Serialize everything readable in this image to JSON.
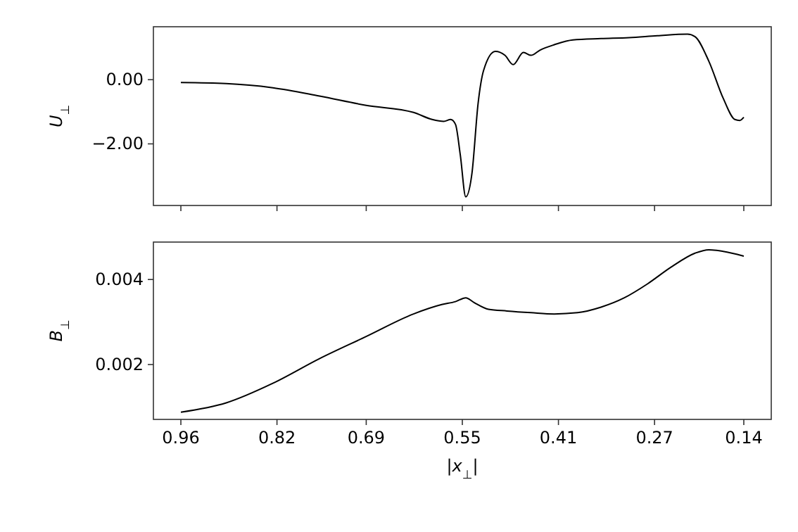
{
  "chart_data": [
    {
      "type": "line",
      "ylabel": "U$_{⊥}$",
      "tick_labels": "y",
      "grid": false,
      "xlim": [
        1.0,
        0.1
      ],
      "xticks": [
        0.96,
        0.82,
        0.69,
        0.55,
        0.41,
        0.27,
        0.14
      ],
      "ylim": [
        -3.92,
        1.65
      ],
      "yticks": [
        {
          "value": 0,
          "label": "0.00"
        },
        {
          "value": -2,
          "label": "−2.00"
        }
      ],
      "series": [
        {
          "color": "#000000",
          "x": [
            0.96,
            0.894,
            0.826,
            0.758,
            0.69,
            0.621,
            0.594,
            0.577,
            0.567,
            0.56,
            0.553,
            0.545,
            0.536,
            0.527,
            0.519,
            0.502,
            0.488,
            0.476,
            0.461,
            0.45,
            0.437,
            0.416,
            0.389,
            0.348,
            0.307,
            0.266,
            0.222,
            0.211,
            0.191,
            0.17,
            0.153,
            0.146,
            0.14
          ],
          "values": [
            -0.09,
            -0.12,
            -0.25,
            -0.51,
            -0.8,
            -1.02,
            -1.24,
            -1.3,
            -1.24,
            -1.39,
            -2.34,
            -3.65,
            -2.92,
            -0.73,
            0.29,
            0.88,
            0.76,
            0.47,
            0.85,
            0.76,
            0.92,
            1.09,
            1.24,
            1.28,
            1.31,
            1.37,
            1.42,
            1.34,
            0.58,
            -0.58,
            -1.24,
            -1.27,
            -1.17
          ]
        }
      ]
    },
    {
      "type": "line",
      "ylabel": "B$_{⊥}$",
      "xlabel": "|x$_{⊥}$|",
      "grid": false,
      "xlim": [
        1.0,
        0.1
      ],
      "xticks": [
        0.96,
        0.82,
        0.69,
        0.55,
        0.41,
        0.27,
        0.14
      ],
      "ylim": [
        0.00071,
        0.00488
      ],
      "yticks": [
        {
          "value": 0.002,
          "label": "0.002"
        },
        {
          "value": 0.004,
          "label": "0.004"
        }
      ],
      "series": [
        {
          "color": "#000000",
          "x": [
            0.96,
            0.894,
            0.826,
            0.758,
            0.69,
            0.621,
            0.58,
            0.56,
            0.545,
            0.533,
            0.512,
            0.485,
            0.45,
            0.416,
            0.382,
            0.348,
            0.314,
            0.28,
            0.246,
            0.211,
            0.191,
            0.17,
            0.14
          ],
          "values": [
            0.00088,
            0.0011,
            0.00156,
            0.00214,
            0.00266,
            0.00319,
            0.00341,
            0.00348,
            0.00357,
            0.00346,
            0.0033,
            0.00326,
            0.00322,
            0.00319,
            0.00322,
            0.00335,
            0.00357,
            0.0039,
            0.00429,
            0.00462,
            0.0047,
            0.00466,
            0.00455
          ]
        }
      ]
    }
  ]
}
